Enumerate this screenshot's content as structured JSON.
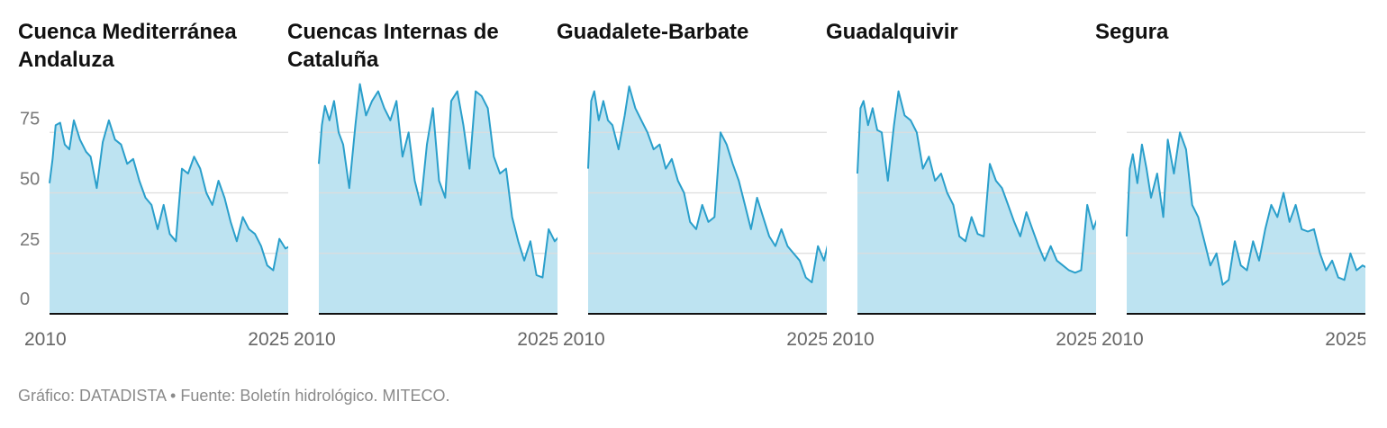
{
  "footer": {
    "source": "Gráfico: DATADISTA • Fuente: Boletín hidrológico. MITECO."
  },
  "style": {
    "area_fill": "#bde3f1",
    "line_color": "#2a9fcb",
    "grid_color": "#dddddd",
    "axis_color": "#111111"
  },
  "chart_data": [
    {
      "type": "area",
      "title": "Cuenca Mediterránea Andaluza",
      "x_ticks": [
        "2010",
        "2025"
      ],
      "y_ticks": [
        0,
        25,
        50,
        75
      ],
      "xlim": [
        2009.5,
        2025.3
      ],
      "ylim": [
        0,
        100
      ],
      "grid": true,
      "legend": "none",
      "series": [
        {
          "x": [
            2009.5,
            2009.7,
            2009.9,
            2010.2,
            2010.5,
            2010.8,
            2011.1,
            2011.5,
            2011.9,
            2012.2,
            2012.6,
            2013.0,
            2013.4,
            2013.8,
            2014.2,
            2014.6,
            2015.0,
            2015.4,
            2015.8,
            2016.2,
            2016.6,
            2017.0,
            2017.4,
            2017.8,
            2018.2,
            2018.6,
            2019.0,
            2019.4,
            2019.8,
            2020.2,
            2020.6,
            2021.0,
            2021.4,
            2021.8,
            2022.2,
            2022.6,
            2023.0,
            2023.4,
            2023.8,
            2024.2,
            2024.6,
            2025.0,
            2025.3
          ],
          "y": [
            54,
            64,
            78,
            79,
            70,
            68,
            80,
            72,
            67,
            65,
            52,
            71,
            80,
            72,
            70,
            62,
            64,
            55,
            48,
            45,
            35,
            45,
            33,
            30,
            60,
            58,
            65,
            60,
            50,
            45,
            55,
            48,
            38,
            30,
            40,
            35,
            33,
            28,
            20,
            18,
            31,
            27,
            28
          ]
        }
      ]
    },
    {
      "type": "area",
      "title": "Cuencas Internas de Cataluña",
      "x_ticks": [
        "2010",
        "2025"
      ],
      "y_ticks": [
        0,
        25,
        50,
        75
      ],
      "xlim": [
        2009.5,
        2025.3
      ],
      "ylim": [
        0,
        100
      ],
      "grid": true,
      "legend": "none",
      "series": [
        {
          "x": [
            2009.5,
            2009.7,
            2009.9,
            2010.2,
            2010.5,
            2010.8,
            2011.1,
            2011.5,
            2011.9,
            2012.2,
            2012.6,
            2013.0,
            2013.4,
            2013.8,
            2014.2,
            2014.6,
            2015.0,
            2015.4,
            2015.8,
            2016.2,
            2016.6,
            2017.0,
            2017.4,
            2017.8,
            2018.2,
            2018.6,
            2019.0,
            2019.4,
            2019.8,
            2020.2,
            2020.6,
            2021.0,
            2021.4,
            2021.8,
            2022.2,
            2022.6,
            2023.0,
            2023.4,
            2023.8,
            2024.2,
            2024.6,
            2025.0,
            2025.3
          ],
          "y": [
            62,
            78,
            86,
            80,
            88,
            75,
            70,
            52,
            78,
            95,
            82,
            88,
            92,
            85,
            80,
            88,
            65,
            75,
            55,
            45,
            70,
            85,
            55,
            48,
            88,
            92,
            78,
            60,
            92,
            90,
            85,
            65,
            58,
            60,
            40,
            30,
            22,
            30,
            16,
            15,
            35,
            30,
            32
          ]
        }
      ]
    },
    {
      "type": "area",
      "title": "Guadalete-Barbate",
      "x_ticks": [
        "2010",
        "2025"
      ],
      "y_ticks": [
        0,
        25,
        50,
        75
      ],
      "xlim": [
        2009.5,
        2025.3
      ],
      "ylim": [
        0,
        100
      ],
      "grid": true,
      "legend": "none",
      "series": [
        {
          "x": [
            2009.5,
            2009.7,
            2009.9,
            2010.2,
            2010.5,
            2010.8,
            2011.1,
            2011.5,
            2011.9,
            2012.2,
            2012.6,
            2013.0,
            2013.4,
            2013.8,
            2014.2,
            2014.6,
            2015.0,
            2015.4,
            2015.8,
            2016.2,
            2016.6,
            2017.0,
            2017.4,
            2017.8,
            2018.2,
            2018.6,
            2019.0,
            2019.4,
            2019.8,
            2020.2,
            2020.6,
            2021.0,
            2021.4,
            2021.8,
            2022.2,
            2022.6,
            2023.0,
            2023.4,
            2023.8,
            2024.2,
            2024.6,
            2025.0,
            2025.3
          ],
          "y": [
            60,
            88,
            92,
            80,
            88,
            80,
            78,
            68,
            82,
            94,
            85,
            80,
            75,
            68,
            70,
            60,
            64,
            55,
            50,
            38,
            35,
            45,
            38,
            40,
            75,
            70,
            62,
            55,
            45,
            35,
            48,
            40,
            32,
            28,
            35,
            28,
            25,
            22,
            15,
            13,
            28,
            22,
            30
          ]
        }
      ]
    },
    {
      "type": "area",
      "title": "Guadalquivir",
      "x_ticks": [
        "2010",
        "2025"
      ],
      "y_ticks": [
        0,
        25,
        50,
        75
      ],
      "xlim": [
        2009.5,
        2025.3
      ],
      "ylim": [
        0,
        100
      ],
      "grid": true,
      "legend": "none",
      "series": [
        {
          "x": [
            2009.5,
            2009.7,
            2009.9,
            2010.2,
            2010.5,
            2010.8,
            2011.1,
            2011.5,
            2011.9,
            2012.2,
            2012.6,
            2013.0,
            2013.4,
            2013.8,
            2014.2,
            2014.6,
            2015.0,
            2015.4,
            2015.8,
            2016.2,
            2016.6,
            2017.0,
            2017.4,
            2017.8,
            2018.2,
            2018.6,
            2019.0,
            2019.4,
            2019.8,
            2020.2,
            2020.6,
            2021.0,
            2021.4,
            2021.8,
            2022.2,
            2022.6,
            2023.0,
            2023.4,
            2023.8,
            2024.2,
            2024.6,
            2025.0,
            2025.3
          ],
          "y": [
            58,
            85,
            88,
            78,
            85,
            76,
            75,
            55,
            78,
            92,
            82,
            80,
            75,
            60,
            65,
            55,
            58,
            50,
            45,
            32,
            30,
            40,
            33,
            32,
            62,
            55,
            52,
            45,
            38,
            32,
            42,
            35,
            28,
            22,
            28,
            22,
            20,
            18,
            17,
            18,
            45,
            35,
            40
          ]
        }
      ]
    },
    {
      "type": "area",
      "title": "Segura",
      "x_ticks": [
        "2010",
        "2025"
      ],
      "y_ticks": [
        0,
        25,
        50,
        75
      ],
      "xlim": [
        2009.5,
        2025.3
      ],
      "ylim": [
        0,
        100
      ],
      "grid": true,
      "legend": "none",
      "series": [
        {
          "x": [
            2009.5,
            2009.7,
            2009.9,
            2010.2,
            2010.5,
            2010.8,
            2011.1,
            2011.5,
            2011.9,
            2012.2,
            2012.6,
            2013.0,
            2013.4,
            2013.8,
            2014.2,
            2014.6,
            2015.0,
            2015.4,
            2015.8,
            2016.2,
            2016.6,
            2017.0,
            2017.4,
            2017.8,
            2018.2,
            2018.6,
            2019.0,
            2019.4,
            2019.8,
            2020.2,
            2020.6,
            2021.0,
            2021.4,
            2021.8,
            2022.2,
            2022.6,
            2023.0,
            2023.4,
            2023.8,
            2024.2,
            2024.6,
            2025.0,
            2025.3
          ],
          "y": [
            32,
            60,
            66,
            54,
            70,
            60,
            48,
            58,
            40,
            72,
            58,
            75,
            68,
            45,
            40,
            30,
            20,
            25,
            12,
            14,
            30,
            20,
            18,
            30,
            22,
            35,
            45,
            40,
            50,
            38,
            45,
            35,
            34,
            35,
            25,
            18,
            22,
            15,
            14,
            25,
            18,
            20,
            19
          ]
        }
      ]
    }
  ]
}
